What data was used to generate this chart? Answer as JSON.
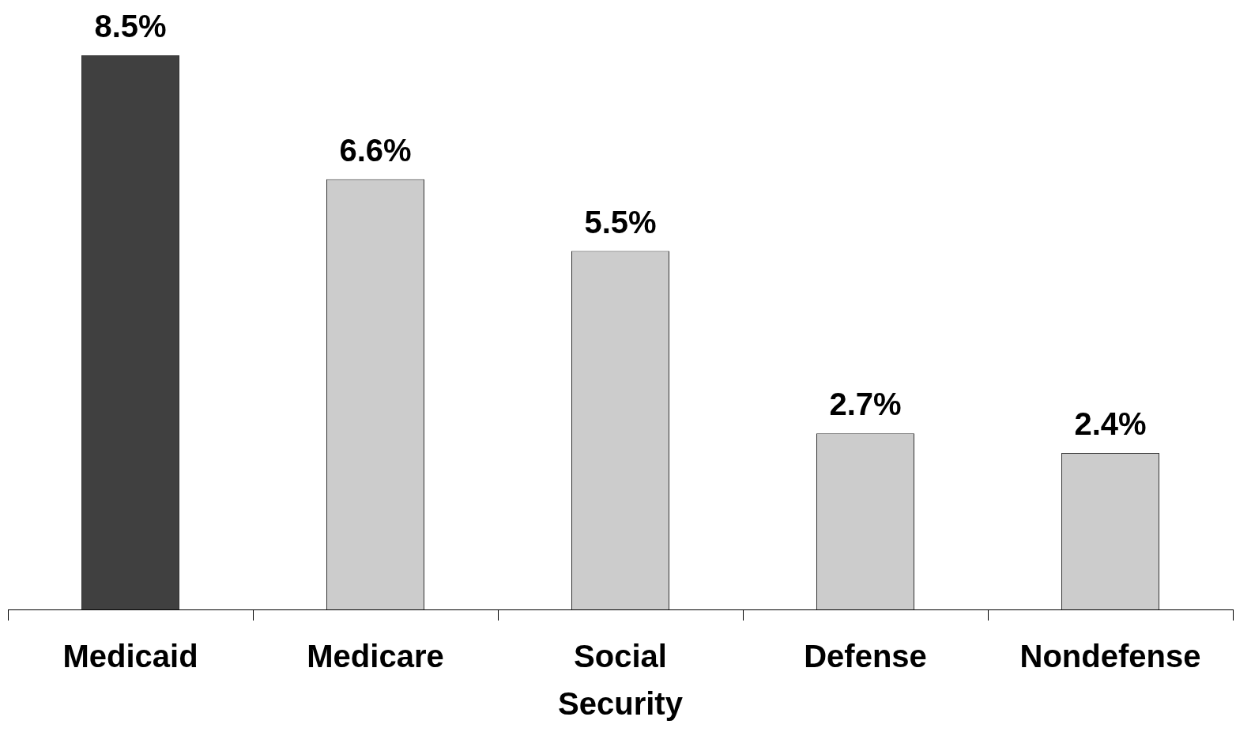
{
  "chart_data": {
    "type": "bar",
    "categories": [
      "Medicaid",
      "Medicare",
      "Social Security",
      "Defense",
      "Nondefense"
    ],
    "values": [
      8.5,
      6.6,
      5.5,
      2.7,
      2.4
    ],
    "colors": [
      "#404040",
      "#cccccc",
      "#cccccc",
      "#cccccc",
      "#cccccc"
    ],
    "value_labels": [
      "8.5%",
      "6.6%",
      "5.5%",
      "2.7%",
      "2.4%"
    ]
  }
}
